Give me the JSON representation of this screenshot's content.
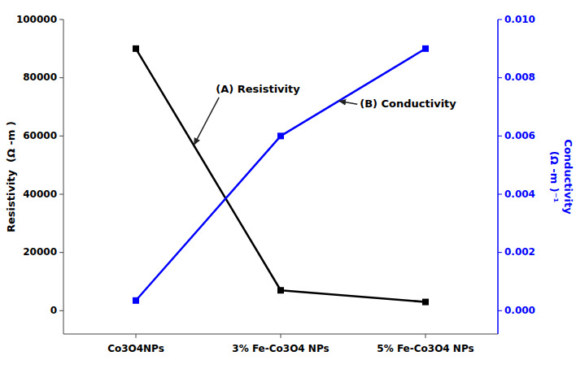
{
  "chart_data": {
    "type": "line",
    "categories": [
      "Co3O4NPs",
      "3% Fe-Co3O4 NPs",
      "5% Fe-Co3O4 NPs"
    ],
    "series": [
      {
        "color": "#000000",
        "marker": "square",
        "values": [
          90000,
          7000,
          3000
        ]
      },
      {
        "color": "#0000ff",
        "marker": "square",
        "axis": "y2",
        "values": [
          0.00035,
          0.006,
          0.009
        ]
      }
    ],
    "ylabel": "Resistivity  (Ω -m )",
    "y2label": [
      "Conductivity",
      "(Ω -m )⁻¹"
    ],
    "ylim": [
      -8000,
      100000
    ],
    "yticks": [
      0,
      20000,
      40000,
      60000,
      80000,
      100000
    ],
    "y2lim": [
      -0.0008,
      0.01
    ],
    "y2ticks": [
      {
        "value": 0,
        "label": "0.000"
      },
      0.002,
      0.004,
      0.006,
      0.008,
      {
        "value": 0.01,
        "label": "0.010"
      }
    ],
    "annotations": [
      "(A) Resistivity",
      "(B) Conductivity"
    ],
    "grid": false
  }
}
